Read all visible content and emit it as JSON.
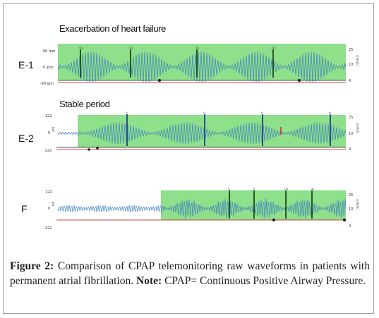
{
  "panels": [
    {
      "id": "E-1",
      "label": "E-1",
      "title": "Exacerbation of heart failure",
      "left_ticks": [
        "60 lpm",
        "0 lpm",
        "-60 lpm"
      ],
      "right_ticks": [
        "25",
        "10",
        "4"
      ],
      "right_axis_label": "cmH2O",
      "marker_labels": [
        "OA",
        "OA",
        "OA",
        "OA"
      ]
    },
    {
      "id": "E-2",
      "label": "E-2",
      "title": "Stable period",
      "left_ticks": [
        "122",
        "0",
        "-122"
      ],
      "left_axis_label": "lpm",
      "right_ticks": [
        "25",
        "10",
        "4"
      ],
      "right_axis_label": "cmH2O",
      "marker_labels": [
        "H",
        "H",
        "H",
        "H"
      ]
    },
    {
      "id": "F",
      "label": "F",
      "title": "",
      "left_ticks": [
        "122",
        "0",
        "-122"
      ],
      "left_axis_label": "lpm",
      "right_ticks": [
        "25",
        "10",
        "4"
      ],
      "right_axis_label": "cmH2O",
      "marker_labels": [
        "H",
        "H",
        "OA",
        "OA"
      ]
    }
  ],
  "caption": {
    "figure_label": "Figure 2:",
    "text": " Comparison of CPAP telemonitoring raw waveforms in patients with permanent atrial fibrillation. ",
    "note_label": "Note:",
    "note_text": " CPAP= Continuous Positive Airway Pressure."
  },
  "colors": {
    "event_region": "#8ee08a",
    "flow_wave": "#3f7fc0",
    "marker_dark": "#1a4a1a",
    "marker_blue": "#1f3f8f",
    "pressure_line": "#d04040",
    "axis_line": "#222222"
  }
}
